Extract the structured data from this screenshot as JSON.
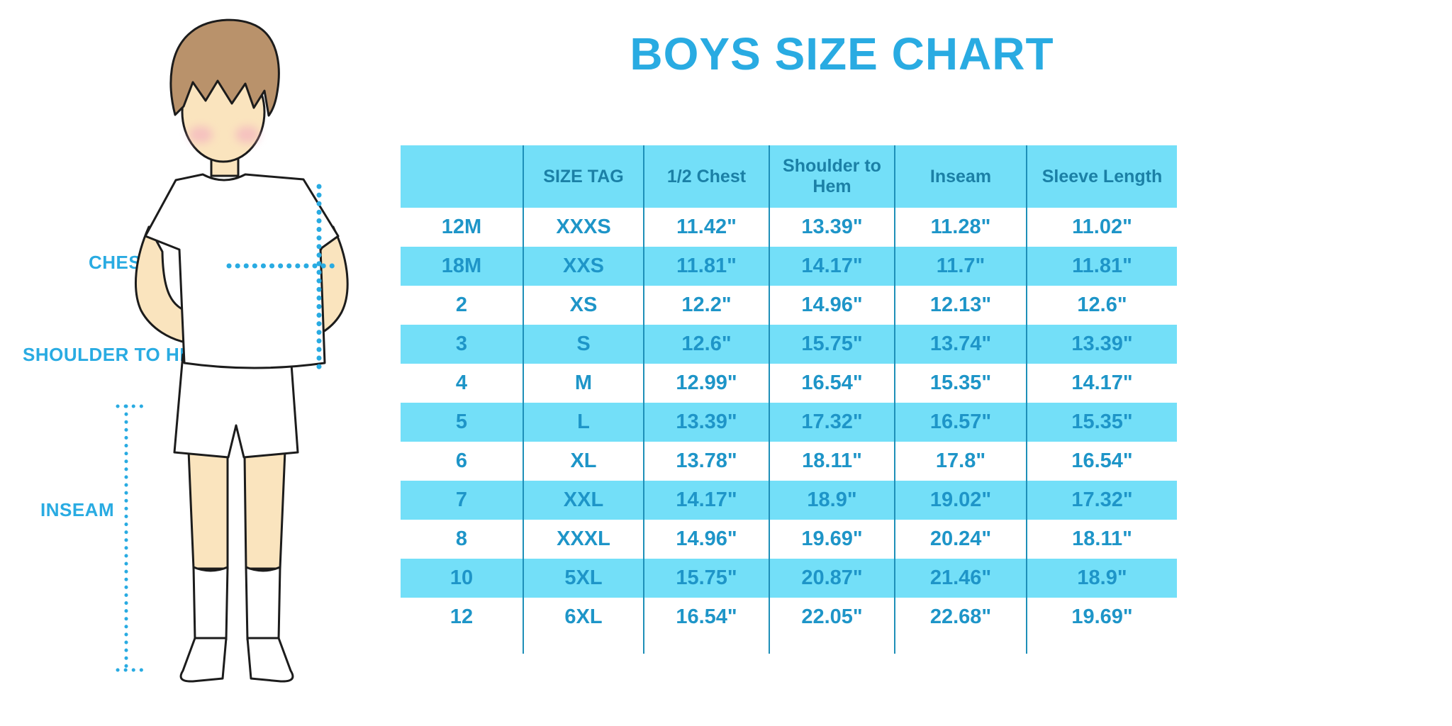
{
  "title": "BOYS SIZE CHART",
  "figure_labels": {
    "chest": "CHEST",
    "shoulder_to_hem": "SHOULDER TO HEM",
    "inseam": "INSEAM"
  },
  "chart_data": {
    "type": "table",
    "title": "BOYS SIZE CHART",
    "columns": [
      "",
      "SIZE TAG",
      "1/2 Chest",
      "Shoulder to Hem",
      "Inseam",
      "Sleeve Length"
    ],
    "rows": [
      [
        "12M",
        "XXXS",
        "11.42\"",
        "13.39\"",
        "11.28\"",
        "11.02\""
      ],
      [
        "18M",
        "XXS",
        "11.81\"",
        "14.17\"",
        "11.7\"",
        "11.81\""
      ],
      [
        "2",
        "XS",
        "12.2\"",
        "14.96\"",
        "12.13\"",
        "12.6\""
      ],
      [
        "3",
        "S",
        "12.6\"",
        "15.75\"",
        "13.74\"",
        "13.39\""
      ],
      [
        "4",
        "M",
        "12.99\"",
        "16.54\"",
        "15.35\"",
        "14.17\""
      ],
      [
        "5",
        "L",
        "13.39\"",
        "17.32\"",
        "16.57\"",
        "15.35\""
      ],
      [
        "6",
        "XL",
        "13.78\"",
        "18.11\"",
        "17.8\"",
        "16.54\""
      ],
      [
        "7",
        "XXL",
        "14.17\"",
        "18.9\"",
        "19.02\"",
        "17.32\""
      ],
      [
        "8",
        "XXXL",
        "14.96\"",
        "19.69\"",
        "20.24\"",
        "18.11\""
      ],
      [
        "10",
        "5XL",
        "15.75\"",
        "20.87\"",
        "21.46\"",
        "18.9\""
      ],
      [
        "12",
        "6XL",
        "16.54\"",
        "22.05\"",
        "22.68\"",
        "19.69\""
      ]
    ],
    "row_striping": "alternating white and light-cyan, header light-cyan",
    "legend_position": "none",
    "grid": "vertical column separators only"
  },
  "colors": {
    "accent_blue": "#29ABE2",
    "table_stripe": "#73DFF8",
    "header_text": "#1B80A6",
    "cell_text": "#1E95C8",
    "grid_line": "#1E8FB8",
    "skin": "#FAE4BE",
    "hair": "#B9926B",
    "blush": "#F3AFC0",
    "outline": "#1C1C1C"
  }
}
